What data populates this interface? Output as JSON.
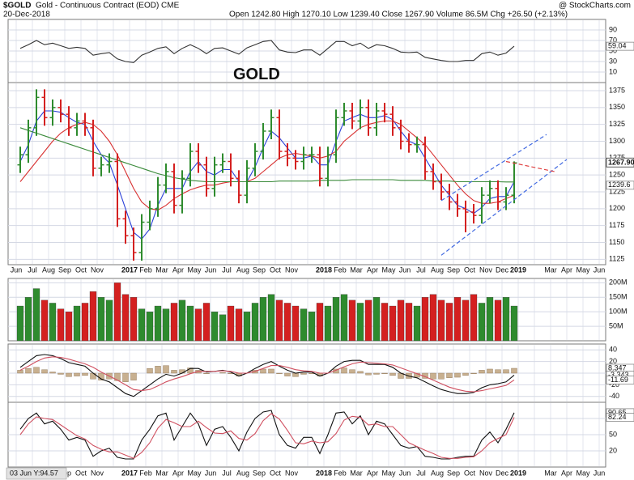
{
  "header": {
    "symbol": "$GOLD",
    "name": "Gold - Continuous Contract (EOD) CME",
    "date": "20-Dec-2018",
    "quote": "Open 1242.80 High 1270.10 Low 1239.40 Close 1267.90 Volume 86.5M Chg +26.50 (+2.13%)",
    "source": "@ StockCharts.com"
  },
  "cursor_readout": "03 Jun Y:94.57",
  "time_axis": {
    "categories": [
      "Jun",
      "Jul",
      "Aug",
      "Sep",
      "Oct",
      "Nov",
      null,
      "2017",
      "Feb",
      "Mar",
      "Apr",
      "May",
      "Jun",
      "Jul",
      "Aug",
      "Sep",
      "Oct",
      "Nov",
      null,
      "2018",
      "Feb",
      "Mar",
      "Apr",
      "May",
      "Jun",
      "Jul",
      "Aug",
      "Sep",
      "Oct",
      "Nov",
      "Dec",
      "2019",
      null,
      "Mar",
      "Apr",
      "May",
      "Jun"
    ]
  },
  "chart_data": [
    {
      "type": "line",
      "annotation": "GOLD",
      "ylim": [
        -10,
        110
      ],
      "yticks": [
        10,
        30,
        50,
        70,
        90
      ],
      "grid": true,
      "series": [
        {
          "color": "#333333",
          "end_label": true,
          "values": [
            55,
            62,
            70,
            62,
            65,
            60,
            55,
            57,
            55,
            42,
            45,
            47,
            35,
            30,
            28,
            42,
            48,
            55,
            58,
            45,
            55,
            62,
            55,
            45,
            55,
            56,
            50,
            44,
            56,
            62,
            68,
            70,
            52,
            48,
            47,
            52,
            52,
            42,
            55,
            68,
            68,
            60,
            65,
            55,
            62,
            60,
            55,
            48,
            47,
            48,
            38,
            35,
            32,
            30,
            30,
            32,
            32,
            45,
            48,
            42,
            46,
            59.04
          ]
        }
      ]
    },
    {
      "type": "ohlc",
      "ylim": [
        1117,
        1387
      ],
      "yticks": [
        1125,
        1150,
        1175,
        1200,
        1225,
        1250,
        1275,
        1300,
        1325,
        1350,
        1375
      ],
      "grid": true,
      "up_color": "#2e8b2e",
      "down_color": "#d42020",
      "last_label": "1267.90",
      "open": [
        1265,
        1280,
        1320,
        1365,
        1335,
        1350,
        1340,
        1320,
        1330,
        1320,
        1260,
        1265,
        1270,
        1185,
        1160,
        1135,
        1180,
        1200,
        1235,
        1255,
        1205,
        1245,
        1285,
        1265,
        1230,
        1265,
        1270,
        1245,
        1220,
        1260,
        1285,
        1315,
        1335,
        1285,
        1275,
        1270,
        1280,
        1280,
        1245,
        1280,
        1335,
        1345,
        1330,
        1350,
        1320,
        1345,
        1340,
        1320,
        1300,
        1295,
        1295,
        1255,
        1240,
        1225,
        1210,
        1200,
        1195,
        1190,
        1220,
        1230,
        1210,
        1220
      ],
      "high": [
        1292,
        1332,
        1377,
        1377,
        1362,
        1362,
        1352,
        1342,
        1342,
        1332,
        1277,
        1282,
        1282,
        1197,
        1172,
        1192,
        1212,
        1247,
        1267,
        1267,
        1257,
        1297,
        1297,
        1277,
        1277,
        1282,
        1282,
        1257,
        1272,
        1297,
        1327,
        1347,
        1347,
        1297,
        1287,
        1292,
        1292,
        1292,
        1292,
        1347,
        1357,
        1357,
        1362,
        1362,
        1357,
        1357,
        1352,
        1332,
        1312,
        1307,
        1307,
        1267,
        1252,
        1237,
        1222,
        1212,
        1207,
        1232,
        1242,
        1242,
        1232,
        1270.1
      ],
      "low": [
        1253,
        1268,
        1308,
        1323,
        1323,
        1328,
        1308,
        1308,
        1308,
        1248,
        1248,
        1253,
        1173,
        1148,
        1123,
        1123,
        1168,
        1188,
        1223,
        1193,
        1193,
        1233,
        1253,
        1218,
        1218,
        1253,
        1233,
        1208,
        1208,
        1248,
        1273,
        1303,
        1273,
        1263,
        1258,
        1258,
        1268,
        1233,
        1233,
        1268,
        1323,
        1318,
        1318,
        1308,
        1308,
        1328,
        1308,
        1288,
        1283,
        1283,
        1243,
        1228,
        1213,
        1198,
        1188,
        1165,
        1178,
        1178,
        1208,
        1198,
        1198,
        1208
      ],
      "close": [
        1280,
        1320,
        1365,
        1335,
        1350,
        1340,
        1320,
        1330,
        1320,
        1260,
        1265,
        1270,
        1185,
        1160,
        1135,
        1180,
        1200,
        1235,
        1255,
        1205,
        1245,
        1285,
        1265,
        1230,
        1265,
        1270,
        1245,
        1220,
        1260,
        1285,
        1315,
        1335,
        1285,
        1275,
        1270,
        1280,
        1280,
        1245,
        1280,
        1335,
        1345,
        1330,
        1350,
        1320,
        1345,
        1340,
        1320,
        1300,
        1295,
        1295,
        1255,
        1240,
        1225,
        1210,
        1200,
        1195,
        1190,
        1220,
        1230,
        1210,
        1220,
        1267.9
      ],
      "series": [
        {
          "color": "#2a40d8",
          "values": [
            1270,
            1295,
            1330,
            1345,
            1345,
            1343,
            1335,
            1328,
            1325,
            1300,
            1280,
            1268,
            1235,
            1200,
            1165,
            1155,
            1170,
            1205,
            1230,
            1230,
            1230,
            1255,
            1270,
            1255,
            1250,
            1258,
            1258,
            1240,
            1240,
            1262,
            1290,
            1315,
            1305,
            1290,
            1275,
            1275,
            1278,
            1265,
            1265,
            1300,
            1330,
            1335,
            1340,
            1335,
            1335,
            1338,
            1332,
            1315,
            1300,
            1295,
            1275,
            1255,
            1235,
            1220,
            1205,
            1200,
            1193,
            1202,
            1215,
            1218,
            1218,
            1240
          ]
        },
        {
          "color": "#d83030",
          "values": [
            1240,
            1255,
            1270,
            1285,
            1300,
            1312,
            1320,
            1325,
            1328,
            1325,
            1315,
            1300,
            1280,
            1255,
            1230,
            1210,
            1200,
            1198,
            1205,
            1215,
            1222,
            1228,
            1232,
            1235,
            1235,
            1238,
            1240,
            1240,
            1240,
            1245,
            1255,
            1265,
            1275,
            1280,
            1282,
            1280,
            1278,
            1275,
            1278,
            1285,
            1300,
            1310,
            1320,
            1325,
            1328,
            1330,
            1330,
            1325,
            1315,
            1305,
            1295,
            1280,
            1265,
            1250,
            1235,
            1222,
            1212,
            1208,
            1208,
            1210,
            1215,
            1220
          ]
        },
        {
          "color": "#3a8a3a",
          "end_label": true,
          "values": [
            1320,
            1316,
            1312,
            1308,
            1304,
            1300,
            1296,
            1292,
            1288,
            1284,
            1280,
            1276,
            1272,
            1268,
            1264,
            1260,
            1256,
            1252,
            1249,
            1246,
            1244,
            1242,
            1241,
            1240,
            1240,
            1240,
            1240,
            1240,
            1240,
            1240,
            1240,
            1240,
            1241,
            1241,
            1241,
            1241,
            1241,
            1242,
            1242,
            1242,
            1242,
            1243,
            1243,
            1243,
            1243,
            1243,
            1243,
            1242,
            1242,
            1242,
            1242,
            1241,
            1241,
            1241,
            1240,
            1240,
            1240,
            1240,
            1240,
            1240,
            1239.6,
            1239.6
          ]
        }
      ],
      "trendlines": [
        {
          "x": [
            52,
            65
          ],
          "y": [
            1212,
            1310
          ],
          "color": "#4169e1"
        },
        {
          "x": [
            52,
            67.5
          ],
          "y": [
            1131,
            1273
          ],
          "color": "#4169e1"
        },
        {
          "x": [
            60,
            66
          ],
          "y": [
            1270,
            1255
          ],
          "color": "#e04040"
        }
      ]
    },
    {
      "type": "bar",
      "ylim": [
        0,
        215
      ],
      "yticks": [
        {
          "value": 50,
          "label": "50M"
        },
        {
          "value": 100,
          "label": "100M"
        },
        {
          "value": 150,
          "label": "150M"
        },
        {
          "value": 200,
          "label": "200M"
        }
      ],
      "grid": true,
      "up_color": "#2e8b2e",
      "down_color": "#d42020",
      "values": [
        120,
        150,
        180,
        140,
        130,
        110,
        100,
        120,
        130,
        170,
        150,
        140,
        200,
        160,
        150,
        110,
        100,
        120,
        110,
        130,
        140,
        120,
        110,
        130,
        100,
        90,
        120,
        110,
        100,
        130,
        150,
        160,
        140,
        130,
        120,
        110,
        100,
        130,
        120,
        150,
        160,
        140,
        130,
        140,
        150,
        130,
        120,
        140,
        130,
        120,
        150,
        160,
        140,
        130,
        150,
        140,
        160,
        130,
        150,
        140,
        150,
        120
      ]
    },
    {
      "type": "line",
      "ylim": [
        -50,
        50
      ],
      "yticks": [
        -40,
        -20,
        0,
        20,
        40
      ],
      "grid": true,
      "series": [
        {
          "color": "#c8b090",
          "kind": "bar",
          "end_label": true,
          "values": [
            5,
            8,
            10,
            6,
            2,
            -2,
            -6,
            -5,
            -4,
            -10,
            -12,
            -10,
            -13,
            -15,
            -12,
            0,
            8,
            12,
            13,
            5,
            6,
            9,
            5,
            -1,
            0,
            1,
            -1,
            -5,
            0,
            5,
            7,
            7,
            -1,
            -5,
            -6,
            -2,
            -1,
            -5,
            0,
            7,
            9,
            6,
            3,
            -3,
            -2,
            -1,
            -4,
            -9,
            -9,
            -7,
            -9,
            -10,
            -10,
            -8,
            -7,
            -4,
            -1,
            5,
            7,
            6,
            6,
            8.347
          ]
        },
        {
          "color": "#111111",
          "end_label": true,
          "values": [
            10,
            20,
            30,
            32,
            30,
            25,
            18,
            15,
            12,
            0,
            -10,
            -15,
            -25,
            -35,
            -40,
            -30,
            -20,
            -10,
            -2,
            -5,
            0,
            8,
            8,
            2,
            3,
            5,
            2,
            -5,
            0,
            8,
            15,
            20,
            12,
            5,
            0,
            2,
            2,
            -5,
            0,
            12,
            20,
            22,
            22,
            15,
            15,
            15,
            10,
            0,
            -5,
            -8,
            -15,
            -22,
            -28,
            -32,
            -35,
            -35,
            -33,
            -25,
            -20,
            -18,
            -15,
            -3.343
          ]
        },
        {
          "color": "#d05060",
          "end_label": true,
          "values": [
            5,
            12,
            20,
            26,
            28,
            27,
            24,
            20,
            16,
            10,
            2,
            -5,
            -12,
            -20,
            -28,
            -30,
            -28,
            -22,
            -15,
            -10,
            -6,
            -1,
            3,
            3,
            3,
            4,
            3,
            0,
            0,
            3,
            8,
            13,
            13,
            10,
            6,
            4,
            3,
            0,
            0,
            5,
            11,
            16,
            19,
            18,
            17,
            16,
            14,
            9,
            4,
            -1,
            -6,
            -12,
            -18,
            -24,
            -28,
            -31,
            -32,
            -30,
            -27,
            -24,
            -21,
            -11.69
          ]
        }
      ]
    },
    {
      "type": "line",
      "ylim": [
        -10,
        110
      ],
      "yticks": [
        20,
        50,
        80
      ],
      "grid": true,
      "series": [
        {
          "color": "#111111",
          "end_label": true,
          "values": [
            60,
            80,
            90,
            70,
            75,
            60,
            40,
            45,
            40,
            10,
            20,
            25,
            8,
            5,
            5,
            40,
            60,
            85,
            90,
            40,
            65,
            90,
            70,
            30,
            60,
            65,
            45,
            20,
            55,
            80,
            92,
            95,
            50,
            30,
            25,
            45,
            45,
            15,
            50,
            90,
            92,
            70,
            85,
            50,
            75,
            70,
            50,
            30,
            25,
            28,
            10,
            8,
            5,
            5,
            8,
            10,
            10,
            40,
            55,
            35,
            60,
            90.65
          ]
        },
        {
          "color": "#d05060",
          "end_label": true,
          "values": [
            50,
            70,
            83,
            80,
            78,
            68,
            58,
            48,
            42,
            30,
            23,
            18,
            18,
            12,
            6,
            17,
            35,
            62,
            78,
            72,
            65,
            65,
            75,
            63,
            53,
            52,
            57,
            43,
            40,
            52,
            76,
            89,
            79,
            58,
            35,
            33,
            38,
            35,
            37,
            52,
            77,
            84,
            82,
            68,
            70,
            65,
            65,
            50,
            35,
            28,
            21,
            15,
            8,
            6,
            6,
            8,
            9,
            20,
            35,
            43,
            50,
            82.24
          ]
        }
      ]
    }
  ]
}
